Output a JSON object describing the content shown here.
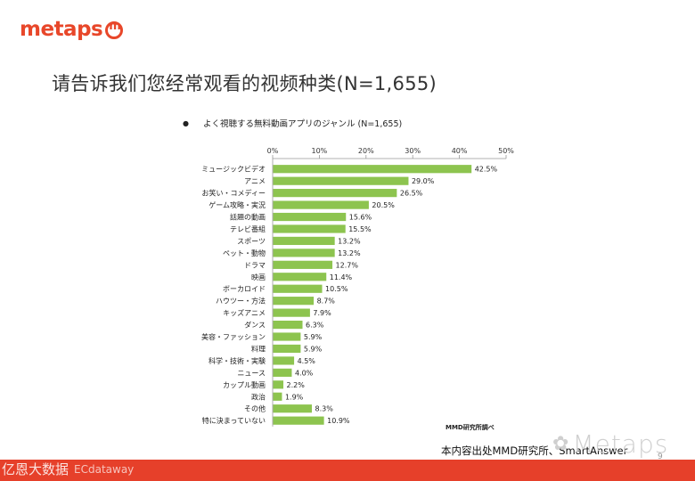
{
  "header": {
    "logo_text": "metaps"
  },
  "slide": {
    "title": "请告诉我们您经常观看的视频种类(N=1,655)"
  },
  "chart_data": {
    "type": "bar",
    "orientation": "horizontal",
    "title": "よく視聴する無料動画アプリのジャンル (N=1,655)",
    "bullet": "●",
    "categories": [
      "ミュージックビデオ",
      "アニメ",
      "お笑い・コメディー",
      "ゲーム攻略・実況",
      "話題の動画",
      "テレビ番組",
      "スポーツ",
      "ペット・動物",
      "ドラマ",
      "映画",
      "ボーカロイド",
      "ハウツー・方法",
      "キッズアニメ",
      "ダンス",
      "美容・ファッション",
      "料理",
      "科学・技術・実験",
      "ニュース",
      "カップル動画",
      "政治",
      "その他",
      "特に決まっていない"
    ],
    "values": [
      42.5,
      29.0,
      26.5,
      20.5,
      15.6,
      15.5,
      13.2,
      13.2,
      12.7,
      11.4,
      10.5,
      8.7,
      7.9,
      6.3,
      5.9,
      5.9,
      4.5,
      4.0,
      2.2,
      1.9,
      8.3,
      10.9
    ],
    "value_labels": [
      "42.5%",
      "29.0%",
      "26.5%",
      "20.5%",
      "15.6%",
      "15.5%",
      "13.2%",
      "13.2%",
      "12.7%",
      "11.4%",
      "10.5%",
      "8.7%",
      "7.9%",
      "6.3%",
      "5.9%",
      "5.9%",
      "4.5%",
      "4.0%",
      "2.2%",
      "1.9%",
      "8.3%",
      "10.9%"
    ],
    "xlim": [
      0,
      50
    ],
    "ticks": [
      0,
      10,
      20,
      30,
      40,
      50
    ],
    "tick_labels": [
      "0%",
      "10%",
      "20%",
      "30%",
      "40%",
      "50%"
    ],
    "bar_color": "#8dc44f",
    "axis_color": "#999999",
    "source": "MMD研究所調べ"
  },
  "footer": {
    "note": "本内容出处MMD研究所、SmartAnswer",
    "watermark": "Metaps",
    "watermark_icon": "wechat-icon",
    "page_number": "9",
    "bottom_left": "亿恩大数据",
    "bottom_brand": "ECdataway",
    "bar_color": "#e6402a"
  }
}
